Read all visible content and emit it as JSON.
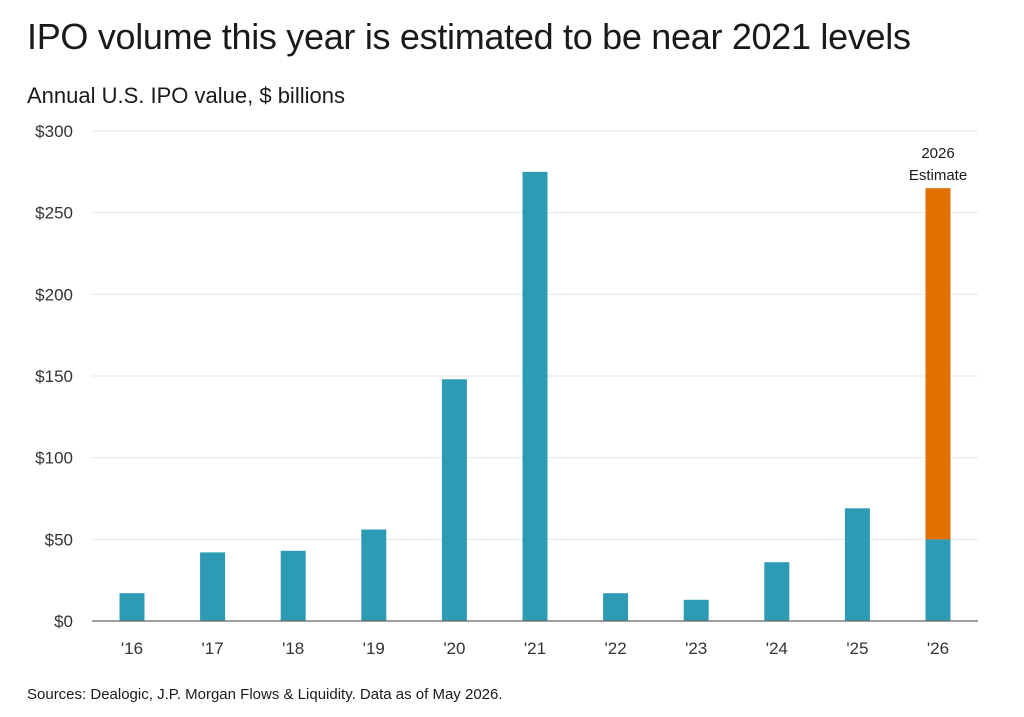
{
  "title": "IPO volume this year is estimated to be near 2021 levels",
  "subtitle": "Annual U.S. IPO value, $ billions",
  "source": "Sources: Dealogic, J.P. Morgan Flows & Liquidity. Data as of May 2026.",
  "colors": {
    "actual": "#2e9bb4",
    "estimate": "#e07000",
    "grid": "#e6e6e6",
    "axis": "#666666"
  },
  "chart_data": {
    "type": "bar",
    "categories": [
      "'16",
      "'17",
      "'18",
      "'19",
      "'20",
      "'21",
      "'22",
      "'23",
      "'24",
      "'25",
      "'26"
    ],
    "series": [
      {
        "values": [
          17,
          42,
          43,
          56,
          148,
          275,
          17,
          13,
          36,
          69,
          50
        ]
      },
      {
        "values": [
          0,
          0,
          0,
          0,
          0,
          0,
          0,
          0,
          0,
          0,
          215
        ]
      }
    ],
    "ylim": [
      0,
      300
    ],
    "yticks": [
      0,
      50,
      100,
      150,
      200,
      250,
      300
    ],
    "ytick_labels": [
      "$0",
      "$50",
      "$100",
      "$150",
      "$200",
      "$250",
      "$300"
    ],
    "grid": true,
    "annotation": {
      "category": "'26",
      "lines": [
        "2026",
        "Estimate"
      ]
    }
  }
}
